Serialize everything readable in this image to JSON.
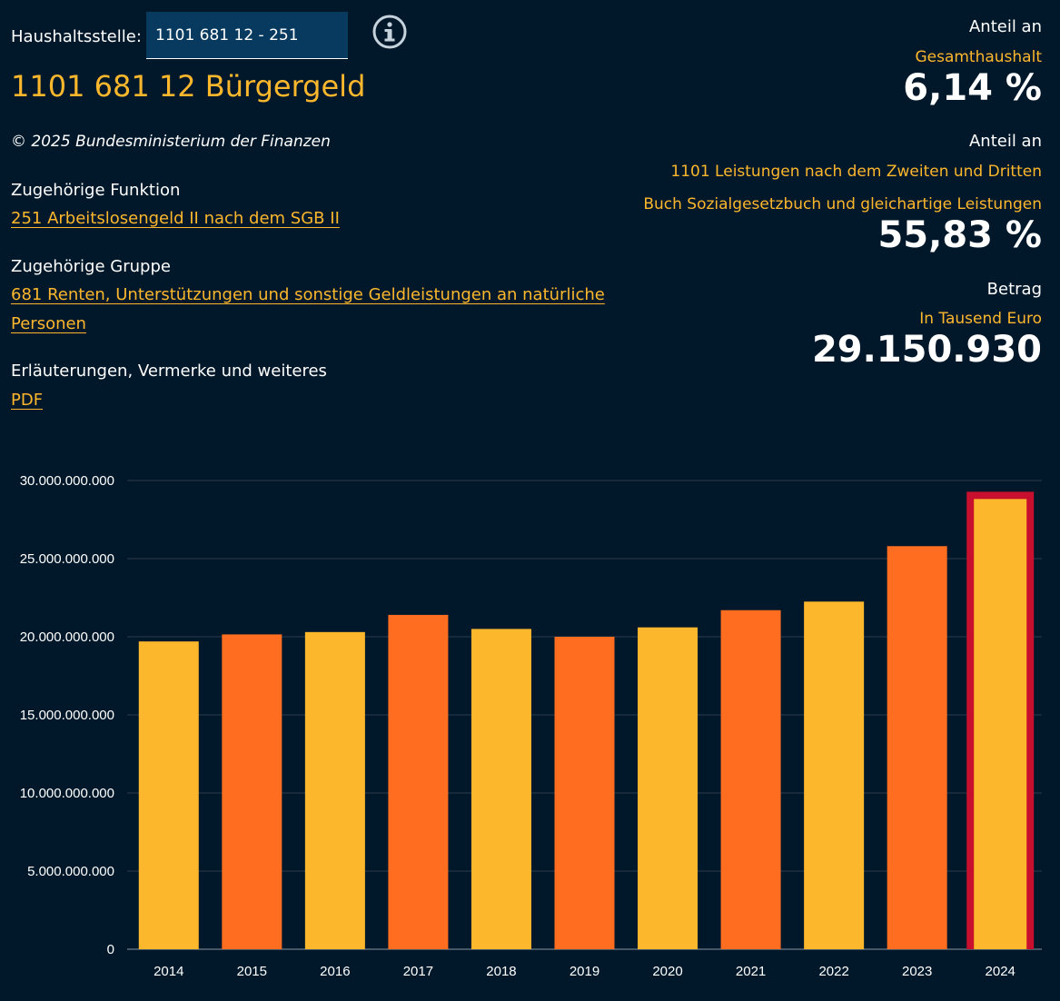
{
  "header": {
    "haushaltsstelle_label": "Haushaltsstelle:",
    "haushaltsstelle_value": "1101 681 12 - 251",
    "title": "1101 681 12 Bürgergeld",
    "copyright": "© 2025 Bundesministerium der Finanzen"
  },
  "details": {
    "funktion_label": "Zugehörige Funktion",
    "funktion_link": "251 Arbeitslosengeld II nach dem SGB II",
    "gruppe_label": "Zugehörige Gruppe",
    "gruppe_link_line1": "681 Renten, Unterstützungen und sonstige Geldleistungen an natürliche",
    "gruppe_link_line2": "Personen",
    "erlaeuterungen_label": "Erläuterungen, Vermerke und weiteres",
    "pdf_link": "PDF"
  },
  "stats": {
    "anteil1_label": "Anteil an",
    "anteil1_sub": "Gesamthaushalt",
    "anteil1_value": "6,14 %",
    "anteil2_label": "Anteil an",
    "anteil2_sub_line1": "1101 Leistungen nach dem Zweiten und Dritten",
    "anteil2_sub_line2": "Buch Sozialgesetzbuch und gleichartige Leistungen",
    "anteil2_value": "55,83 %",
    "betrag_label": "Betrag",
    "betrag_sub": "In Tausend Euro",
    "betrag_value": "29.150.930"
  },
  "colors": {
    "background": "#01182a",
    "accent": "#fdb72d",
    "bar_alt": "#ff6e20",
    "highlight": "#c8102e",
    "input_bg": "#073a5e"
  },
  "chart_data": {
    "type": "bar",
    "title": "",
    "xlabel": "",
    "ylabel": "",
    "categories": [
      "2014",
      "2015",
      "2016",
      "2017",
      "2018",
      "2019",
      "2020",
      "2021",
      "2022",
      "2023",
      "2024"
    ],
    "values": [
      19700000000,
      20150000000,
      20300000000,
      21400000000,
      20500000000,
      20000000000,
      20600000000,
      21700000000,
      22250000000,
      25800000000,
      28700000000
    ],
    "highlighted": "2024",
    "ylim": [
      0,
      30000000000
    ],
    "yticks": [
      0,
      5000000000,
      10000000000,
      15000000000,
      20000000000,
      25000000000,
      30000000000
    ],
    "ytick_labels": [
      "0",
      "5.000.000.000",
      "10.000.000.000",
      "15.000.000.000",
      "20.000.000.000",
      "25.000.000.000",
      "30.000.000.000"
    ],
    "grid": true
  }
}
